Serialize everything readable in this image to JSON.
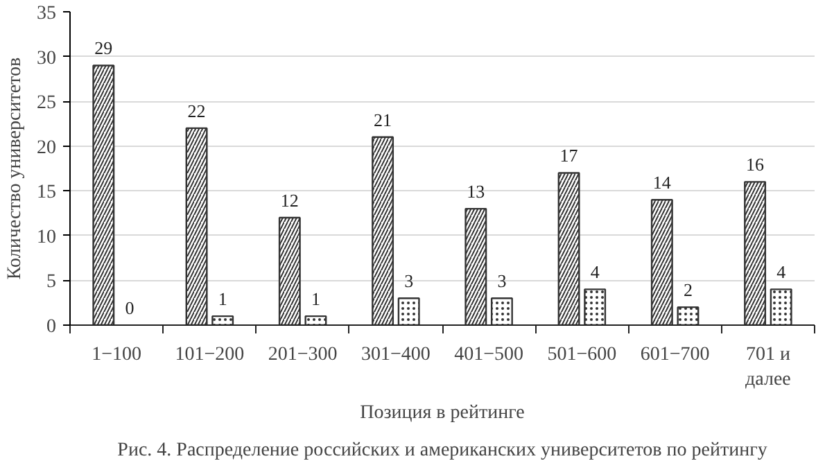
{
  "chart_data": {
    "type": "bar",
    "categories": [
      "1−100",
      "101−200",
      "201−300",
      "301−400",
      "401−500",
      "501−600",
      "601−700",
      "701 и\nдалее"
    ],
    "series": [
      {
        "color": "#ffffff",
        "values": [
          29,
          22,
          12,
          21,
          13,
          17,
          14,
          16
        ]
      },
      {
        "color": "#ffffff",
        "values": [
          0,
          1,
          1,
          3,
          3,
          4,
          2,
          4
        ]
      }
    ],
    "ylim": [
      0,
      35
    ],
    "yticks": [
      0,
      5,
      10,
      15,
      20,
      25,
      30,
      35
    ],
    "xlabel": "Позиция в рейтинге",
    "ylabel": "Количество университетов",
    "annotations": [
      "Рис. 4. Распределение российских и американских университетов по рейтингу"
    ],
    "data_labels": true,
    "grid": "y"
  }
}
